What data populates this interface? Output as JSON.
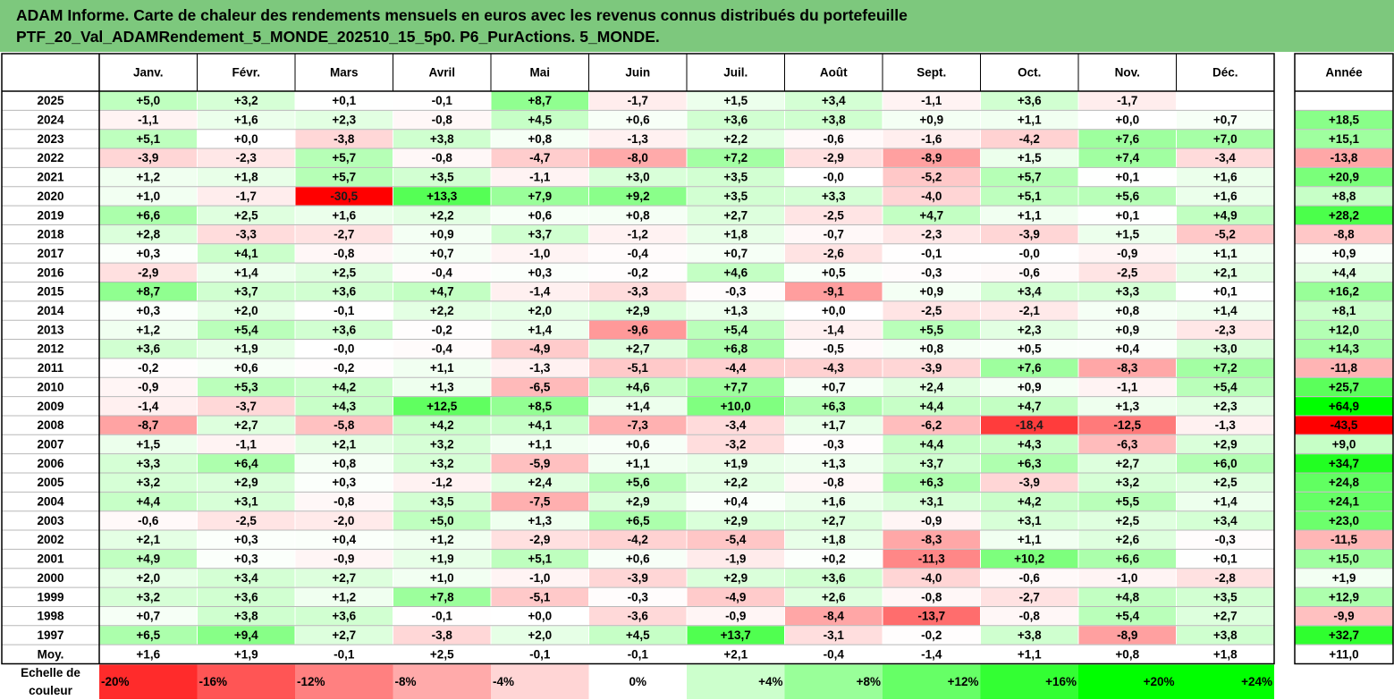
{
  "title": {
    "line1": "ADAM Informe. Carte de chaleur des rendements mensuels en euros avec les revenus connus distribués du portefeuille",
    "line2": "PTF_20_Val_ADAMRendement_5_MONDE_202510_15_5p0. P6_PurActions. 5_MONDE."
  },
  "colors": {
    "title_bg": "#7dc87d",
    "negative_max": "#ff0000",
    "positive_max": "#00ff00",
    "neutral": "#ffffff"
  },
  "chart_data": {
    "type": "heatmap",
    "columns": [
      "Janv.",
      "Févr.",
      "Mars",
      "Avril",
      "Mai",
      "Juin",
      "Juil.",
      "Août",
      "Sept.",
      "Oct.",
      "Nov.",
      "Déc."
    ],
    "year_column": "Année",
    "rows": [
      {
        "year": "2025",
        "months": [
          "+5,0",
          "+3,2",
          "+0,1",
          "-0,1",
          "+8,7",
          "-1,7",
          "+1,5",
          "+3,4",
          "-1,1",
          "+3,6",
          "-1,7",
          ""
        ],
        "annual": ""
      },
      {
        "year": "2024",
        "months": [
          "-1,1",
          "+1,6",
          "+2,3",
          "-0,8",
          "+4,5",
          "+0,6",
          "+3,6",
          "+3,8",
          "+0,9",
          "+1,1",
          "+0,0",
          "+0,7"
        ],
        "annual": "+18,5"
      },
      {
        "year": "2023",
        "months": [
          "+5,1",
          "+0,0",
          "-3,8",
          "+3,8",
          "+0,8",
          "-1,3",
          "+2,2",
          "-0,6",
          "-1,6",
          "-4,2",
          "+7,6",
          "+7,0"
        ],
        "annual": "+15,1"
      },
      {
        "year": "2022",
        "months": [
          "-3,9",
          "-2,3",
          "+5,7",
          "-0,8",
          "-4,7",
          "-8,0",
          "+7,2",
          "-2,9",
          "-8,9",
          "+1,5",
          "+7,4",
          "-3,4"
        ],
        "annual": "-13,8"
      },
      {
        "year": "2021",
        "months": [
          "+1,2",
          "+1,8",
          "+5,7",
          "+3,5",
          "-1,1",
          "+3,0",
          "+3,5",
          "-0,0",
          "-5,2",
          "+5,7",
          "+0,1",
          "+1,6"
        ],
        "annual": "+20,9"
      },
      {
        "year": "2020",
        "months": [
          "+1,0",
          "-1,7",
          "-30,5",
          "+13,3",
          "+7,9",
          "+9,2",
          "+3,5",
          "+3,3",
          "-4,0",
          "+5,1",
          "+5,6",
          "+1,6"
        ],
        "annual": "+8,8"
      },
      {
        "year": "2019",
        "months": [
          "+6,6",
          "+2,5",
          "+1,6",
          "+2,2",
          "+0,6",
          "+0,8",
          "+2,7",
          "-2,5",
          "+4,7",
          "+1,1",
          "+0,1",
          "+4,9"
        ],
        "annual": "+28,2"
      },
      {
        "year": "2018",
        "months": [
          "+2,8",
          "-3,3",
          "-2,7",
          "+0,9",
          "+3,7",
          "-1,2",
          "+1,8",
          "-0,7",
          "-2,3",
          "-3,9",
          "+1,5",
          "-5,2"
        ],
        "annual": "-8,8"
      },
      {
        "year": "2017",
        "months": [
          "+0,3",
          "+4,1",
          "-0,8",
          "+0,7",
          "-1,0",
          "-0,4",
          "+0,7",
          "-2,6",
          "-0,1",
          "-0,0",
          "-0,9",
          "+1,1"
        ],
        "annual": "+0,9"
      },
      {
        "year": "2016",
        "months": [
          "-2,9",
          "+1,4",
          "+2,5",
          "-0,4",
          "+0,3",
          "-0,2",
          "+4,6",
          "+0,5",
          "-0,3",
          "-0,6",
          "-2,5",
          "+2,1"
        ],
        "annual": "+4,4"
      },
      {
        "year": "2015",
        "months": [
          "+8,7",
          "+3,7",
          "+3,6",
          "+4,7",
          "-1,4",
          "-3,3",
          "-0,3",
          "-9,1",
          "+0,9",
          "+3,4",
          "+3,3",
          "+0,1"
        ],
        "annual": "+16,2"
      },
      {
        "year": "2014",
        "months": [
          "+0,3",
          "+2,0",
          "-0,1",
          "+2,2",
          "+2,0",
          "+2,9",
          "+1,3",
          "+0,0",
          "-2,5",
          "-2,1",
          "+0,8",
          "+1,4"
        ],
        "annual": "+8,1"
      },
      {
        "year": "2013",
        "months": [
          "+1,2",
          "+5,4",
          "+3,6",
          "-0,2",
          "+1,4",
          "-9,6",
          "+5,4",
          "-1,4",
          "+5,5",
          "+2,3",
          "+0,9",
          "-2,3"
        ],
        "annual": "+12,0"
      },
      {
        "year": "2012",
        "months": [
          "+3,6",
          "+1,9",
          "-0,0",
          "-0,4",
          "-4,9",
          "+2,7",
          "+6,8",
          "-0,5",
          "+0,8",
          "+0,5",
          "+0,4",
          "+3,0"
        ],
        "annual": "+14,3"
      },
      {
        "year": "2011",
        "months": [
          "-0,2",
          "+0,6",
          "-0,2",
          "+1,1",
          "-1,3",
          "-5,1",
          "-4,4",
          "-4,3",
          "-3,9",
          "+7,6",
          "-8,3",
          "+7,2"
        ],
        "annual": "-11,8"
      },
      {
        "year": "2010",
        "months": [
          "-0,9",
          "+5,3",
          "+4,2",
          "+1,3",
          "-6,5",
          "+4,6",
          "+7,7",
          "+0,7",
          "+2,4",
          "+0,9",
          "-1,1",
          "+5,4"
        ],
        "annual": "+25,7"
      },
      {
        "year": "2009",
        "months": [
          "-1,4",
          "-3,7",
          "+4,3",
          "+12,5",
          "+8,5",
          "+1,4",
          "+10,0",
          "+6,3",
          "+4,4",
          "+4,7",
          "+1,3",
          "+2,3"
        ],
        "annual": "+64,9"
      },
      {
        "year": "2008",
        "months": [
          "-8,7",
          "+2,7",
          "-5,8",
          "+4,2",
          "+4,1",
          "-7,3",
          "-3,4",
          "+1,7",
          "-6,2",
          "-18,4",
          "-12,5",
          "-1,3"
        ],
        "annual": "-43,5"
      },
      {
        "year": "2007",
        "months": [
          "+1,5",
          "-1,1",
          "+2,1",
          "+3,2",
          "+1,1",
          "+0,6",
          "-3,2",
          "-0,3",
          "+4,4",
          "+4,3",
          "-6,3",
          "+2,9"
        ],
        "annual": "+9,0"
      },
      {
        "year": "2006",
        "months": [
          "+3,3",
          "+6,4",
          "+0,8",
          "+3,2",
          "-5,9",
          "+1,1",
          "+1,9",
          "+1,3",
          "+3,7",
          "+6,3",
          "+2,7",
          "+6,0"
        ],
        "annual": "+34,7"
      },
      {
        "year": "2005",
        "months": [
          "+3,2",
          "+2,9",
          "+0,3",
          "-1,2",
          "+2,4",
          "+5,6",
          "+2,2",
          "-0,8",
          "+6,3",
          "-3,9",
          "+3,2",
          "+2,5"
        ],
        "annual": "+24,8"
      },
      {
        "year": "2004",
        "months": [
          "+4,4",
          "+3,1",
          "-0,8",
          "+3,5",
          "-7,5",
          "+2,9",
          "+0,4",
          "+1,6",
          "+3,1",
          "+4,2",
          "+5,5",
          "+1,4"
        ],
        "annual": "+24,1"
      },
      {
        "year": "2003",
        "months": [
          "-0,6",
          "-2,5",
          "-2,0",
          "+5,0",
          "+1,3",
          "+6,5",
          "+2,9",
          "+2,7",
          "-0,9",
          "+3,1",
          "+2,5",
          "+3,4"
        ],
        "annual": "+23,0"
      },
      {
        "year": "2002",
        "months": [
          "+2,1",
          "+0,3",
          "+0,4",
          "+1,2",
          "-2,9",
          "-4,2",
          "-5,4",
          "+1,8",
          "-8,3",
          "+1,1",
          "+2,6",
          "-0,3"
        ],
        "annual": "-11,5"
      },
      {
        "year": "2001",
        "months": [
          "+4,9",
          "+0,3",
          "-0,9",
          "+1,9",
          "+5,1",
          "+0,6",
          "-1,9",
          "+0,2",
          "-11,3",
          "+10,2",
          "+6,6",
          "+0,1"
        ],
        "annual": "+15,0"
      },
      {
        "year": "2000",
        "months": [
          "+2,0",
          "+3,4",
          "+2,7",
          "+1,0",
          "-1,0",
          "-3,9",
          "+2,9",
          "+3,6",
          "-4,0",
          "-0,6",
          "-1,0",
          "-2,8"
        ],
        "annual": "+1,9"
      },
      {
        "year": "1999",
        "months": [
          "+3,2",
          "+3,6",
          "+1,2",
          "+7,8",
          "-5,1",
          "-0,3",
          "-4,9",
          "+2,6",
          "-0,8",
          "-2,7",
          "+4,8",
          "+3,5"
        ],
        "annual": "+12,9"
      },
      {
        "year": "1998",
        "months": [
          "+0,7",
          "+3,8",
          "+3,6",
          "-0,1",
          "+0,0",
          "-3,6",
          "-0,9",
          "-8,4",
          "-13,7",
          "-0,8",
          "+5,4",
          "+2,7"
        ],
        "annual": "-9,9"
      },
      {
        "year": "1997",
        "months": [
          "+6,5",
          "+9,4",
          "+2,7",
          "-3,8",
          "+2,0",
          "+4,5",
          "+13,7",
          "-3,1",
          "-0,2",
          "+3,8",
          "-8,9",
          "+3,8"
        ],
        "annual": "+32,7"
      }
    ],
    "average_row": {
      "label": "Moy.",
      "months": [
        "+1,6",
        "+1,9",
        "-0,1",
        "+2,5",
        "-0,1",
        "-0,1",
        "+2,1",
        "-0,4",
        "-1,4",
        "+1,1",
        "+0,8",
        "+1,8"
      ],
      "annual": "+11,0"
    },
    "scale": {
      "label_line1": "Echelle de",
      "label_line2": "couleur",
      "steps": [
        "-20%",
        "-16%",
        "-12%",
        "-8%",
        "-4%",
        "0%",
        "+4%",
        "+8%",
        "+12%",
        "+16%",
        "+20%",
        "+24%"
      ]
    }
  }
}
